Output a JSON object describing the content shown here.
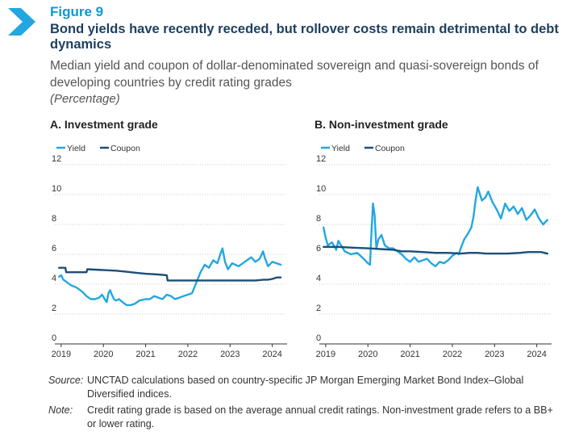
{
  "header": {
    "figure_label": "Figure 9",
    "title": "Bond yields have recently receded, but rollover costs remain detrimental to debt dynamics",
    "subtitle": "Median yield and coupon of dollar-denominated sovereign and quasi-sovereign bonds of developing countries by credit rating grades",
    "units": "(Percentage)"
  },
  "colors": {
    "yield": "#22a7e0",
    "coupon": "#1b4f78",
    "accent": "#0a9ad6",
    "title": "#1d3f5e"
  },
  "chart_data": [
    {
      "type": "line",
      "title": "A. Investment grade",
      "legend": [
        "Yield",
        "Coupon"
      ],
      "xlim": [
        2018.85,
        2024.35
      ],
      "ylim": [
        0,
        12
      ],
      "yticks": [
        "0",
        "2",
        "4",
        "6",
        "8",
        "10",
        "12"
      ],
      "xticks": [
        "2019",
        "2020",
        "2021",
        "2022",
        "2023",
        "2024"
      ],
      "grid": "horizontal dotted",
      "legend_position": "top-left",
      "series": [
        {
          "name": "Yield",
          "x": [
            2018.95,
            2019.0,
            2019.05,
            2019.15,
            2019.25,
            2019.35,
            2019.5,
            2019.6,
            2019.7,
            2019.8,
            2019.9,
            2019.97,
            2020.03,
            2020.08,
            2020.12,
            2020.16,
            2020.2,
            2020.25,
            2020.3,
            2020.37,
            2020.45,
            2020.55,
            2020.65,
            2020.75,
            2020.85,
            2021.0,
            2021.1,
            2021.2,
            2021.3,
            2021.4,
            2021.5,
            2021.6,
            2021.7,
            2021.8,
            2021.9,
            2022.0,
            2022.1,
            2022.2,
            2022.3,
            2022.4,
            2022.5,
            2022.6,
            2022.7,
            2022.78,
            2022.82,
            2022.88,
            2022.95,
            2023.05,
            2023.2,
            2023.35,
            2023.5,
            2023.6,
            2023.7,
            2023.78,
            2023.82,
            2023.9,
            2024.0,
            2024.1,
            2024.2
          ],
          "y": [
            4.5,
            4.6,
            4.3,
            4.1,
            3.9,
            3.8,
            3.5,
            3.2,
            3.0,
            3.0,
            3.1,
            3.3,
            3.0,
            2.8,
            3.4,
            3.6,
            3.3,
            3.0,
            2.9,
            3.0,
            2.8,
            2.6,
            2.6,
            2.7,
            2.9,
            3.0,
            3.0,
            3.2,
            3.1,
            3.0,
            3.3,
            3.2,
            3.0,
            3.1,
            3.2,
            3.3,
            3.4,
            4.1,
            4.8,
            5.3,
            5.1,
            5.6,
            5.4,
            6.1,
            6.4,
            5.5,
            5.0,
            5.4,
            5.2,
            5.5,
            5.8,
            5.5,
            5.7,
            6.2,
            5.8,
            5.2,
            5.5,
            5.4,
            5.3
          ]
        },
        {
          "name": "Coupon",
          "x": [
            2018.95,
            2019.1,
            2019.12,
            2019.6,
            2019.62,
            2020.3,
            2020.5,
            2020.8,
            2021.0,
            2021.3,
            2021.5,
            2021.52,
            2022.2,
            2022.5,
            2022.8,
            2023.0,
            2023.3,
            2023.6,
            2023.8,
            2023.9,
            2024.0,
            2024.1,
            2024.2
          ],
          "y": [
            5.1,
            5.1,
            4.8,
            4.8,
            5.0,
            4.9,
            4.85,
            4.75,
            4.7,
            4.65,
            4.6,
            4.25,
            4.25,
            4.25,
            4.25,
            4.25,
            4.25,
            4.25,
            4.3,
            4.3,
            4.35,
            4.45,
            4.45
          ]
        }
      ]
    },
    {
      "type": "line",
      "title": "B. Non-investment grade",
      "legend": [
        "Yield",
        "Coupon"
      ],
      "xlim": [
        2018.85,
        2024.35
      ],
      "ylim": [
        0,
        12
      ],
      "yticks": [
        "0",
        "2",
        "4",
        "6",
        "8",
        "10",
        "12"
      ],
      "xticks": [
        "2019",
        "2020",
        "2021",
        "2022",
        "2023",
        "2024"
      ],
      "grid": "horizontal dotted",
      "legend_position": "top-left",
      "series": [
        {
          "name": "Yield",
          "x": [
            2018.95,
            2019.0,
            2019.05,
            2019.15,
            2019.25,
            2019.3,
            2019.45,
            2019.6,
            2019.75,
            2019.9,
            2020.0,
            2020.05,
            2020.08,
            2020.12,
            2020.16,
            2020.2,
            2020.25,
            2020.32,
            2020.4,
            2020.5,
            2020.6,
            2020.7,
            2020.8,
            2020.9,
            2021.0,
            2021.1,
            2021.2,
            2021.3,
            2021.4,
            2021.5,
            2021.6,
            2021.7,
            2021.8,
            2021.9,
            2022.0,
            2022.1,
            2022.15,
            2022.2,
            2022.28,
            2022.35,
            2022.45,
            2022.5,
            2022.55,
            2022.6,
            2022.7,
            2022.78,
            2022.85,
            2022.95,
            2023.05,
            2023.15,
            2023.25,
            2023.35,
            2023.45,
            2023.55,
            2023.65,
            2023.75,
            2023.85,
            2023.95,
            2024.05,
            2024.15,
            2024.25
          ],
          "y": [
            7.8,
            7.1,
            6.6,
            6.8,
            6.3,
            6.9,
            6.2,
            6.0,
            6.1,
            5.7,
            5.4,
            5.3,
            7.2,
            9.4,
            8.6,
            6.4,
            7.0,
            7.3,
            6.6,
            6.4,
            6.4,
            6.2,
            6.0,
            5.7,
            5.5,
            5.8,
            5.5,
            5.6,
            5.7,
            5.4,
            5.2,
            5.5,
            5.4,
            5.6,
            5.9,
            6.1,
            6.0,
            6.4,
            7.0,
            7.3,
            7.8,
            8.5,
            9.6,
            10.5,
            9.6,
            9.8,
            10.2,
            9.5,
            9.0,
            8.4,
            9.4,
            8.9,
            9.2,
            8.7,
            9.1,
            8.3,
            8.6,
            9.0,
            8.4,
            8.0,
            8.3
          ]
        },
        {
          "name": "Coupon",
          "x": [
            2018.95,
            2019.3,
            2019.6,
            2020.0,
            2020.3,
            2020.6,
            2020.8,
            2021.0,
            2021.3,
            2021.6,
            2021.9,
            2022.2,
            2022.4,
            2022.6,
            2022.8,
            2023.0,
            2023.3,
            2023.6,
            2023.8,
            2024.0,
            2024.1,
            2024.25
          ],
          "y": [
            6.5,
            6.5,
            6.45,
            6.4,
            6.35,
            6.3,
            6.2,
            6.2,
            6.15,
            6.1,
            6.1,
            6.05,
            6.1,
            6.1,
            6.05,
            6.05,
            6.05,
            6.1,
            6.15,
            6.15,
            6.15,
            6.05
          ]
        }
      ]
    }
  ],
  "notes": [
    {
      "key": "Source:",
      "text": "UNCTAD calculations based on country-specific JP Morgan Emerging Market Bond Index–Global Diversified indices."
    },
    {
      "key": "Note:",
      "text": "Credit rating grade is based on the average annual credit ratings. Non-investment grade refers to a BB+ or lower rating."
    }
  ]
}
